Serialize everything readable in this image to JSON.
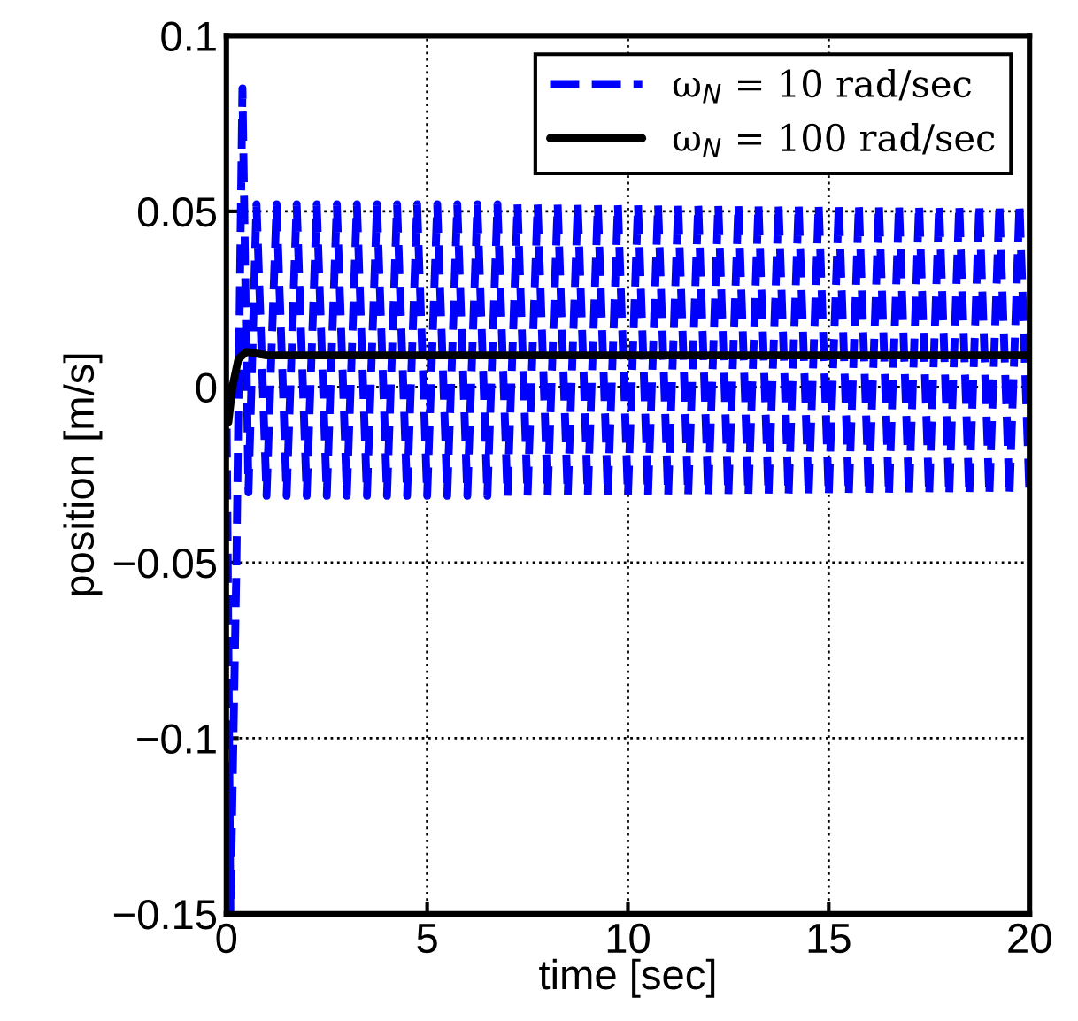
{
  "chart_data": {
    "type": "line",
    "xlabel": "time [sec]",
    "ylabel": "position [m/s]",
    "xlim": [
      0,
      20
    ],
    "xticks": [
      0,
      5,
      10,
      15,
      20
    ],
    "ylim": [
      -0.15,
      0.1
    ],
    "yticks": [
      {
        "value": -0.15,
        "label": "−0.15"
      },
      {
        "value": -0.1,
        "label": "−0.1"
      },
      {
        "value": -0.05,
        "label": "−0.05"
      },
      0,
      0.05,
      0.1
    ],
    "grid": true,
    "legend": "top right",
    "series": [
      {
        "name": "ω$_{N}$ = 10 rad/sec",
        "color": "#0000ff",
        "line_style": "dashed",
        "x": [
          0,
          0.1,
          0.25,
          0.4,
          0.55,
          0.75,
          1,
          1.25,
          1.5,
          1.75,
          2,
          2.25,
          2.5,
          2.75,
          3,
          3.25,
          3.5,
          3.75,
          4,
          4.25,
          4.5,
          4.75,
          5,
          5.25,
          5.5,
          5.75,
          6,
          6.25,
          6.5,
          6.75,
          7,
          7.25,
          7.5,
          7.75,
          8,
          8.25,
          8.5,
          8.75,
          9,
          9.25,
          9.5,
          9.75,
          10,
          10.25,
          10.5,
          10.75,
          11,
          11.25,
          11.5,
          11.75,
          12,
          12.25,
          12.5,
          12.75,
          13,
          13.25,
          13.5,
          13.75,
          14,
          14.25,
          14.5,
          14.75,
          15,
          15.25,
          15.5,
          15.75,
          16,
          16.25,
          16.5,
          16.75,
          17,
          17.25,
          17.5,
          17.75,
          18,
          18.25,
          18.5,
          18.75,
          19,
          19.25,
          19.5,
          19.75,
          20
        ],
        "values": [
          0,
          -0.15,
          -0.05,
          0.085,
          -0.03,
          0.052,
          -0.031,
          0.052,
          -0.031,
          0.052,
          -0.031,
          0.052,
          -0.031,
          0.052,
          -0.031,
          0.052,
          -0.031,
          0.052,
          -0.031,
          0.052,
          -0.031,
          0.052,
          -0.031,
          0.052,
          -0.031,
          0.052,
          -0.031,
          0.052,
          -0.031,
          0.052,
          -0.031,
          0.052,
          -0.031,
          0.052,
          -0.031,
          0.052,
          -0.031,
          0.052,
          -0.031,
          0.052,
          -0.031,
          0.052,
          -0.031,
          0.052,
          -0.031,
          0.052,
          -0.031,
          0.052,
          -0.031,
          0.052,
          -0.031,
          0.052,
          -0.031,
          0.052,
          -0.031,
          0.052,
          -0.031,
          0.052,
          -0.031,
          0.052,
          -0.031,
          0.052,
          -0.031,
          0.052,
          -0.031,
          0.052,
          -0.031,
          0.052,
          -0.031,
          0.052,
          -0.031,
          0.052,
          -0.031,
          0.052,
          -0.031,
          0.052,
          -0.031,
          0.052,
          -0.031,
          0.052,
          -0.031,
          0.052,
          -0.031
        ]
      },
      {
        "name": "ω$_{N}$ = 100 rad/sec",
        "color": "#000000",
        "line_style": "solid",
        "x": [
          0,
          0.05,
          0.15,
          0.3,
          0.5,
          1,
          20
        ],
        "values": [
          0,
          -0.01,
          0,
          0.008,
          0.01,
          0.009,
          0.009
        ]
      }
    ]
  }
}
